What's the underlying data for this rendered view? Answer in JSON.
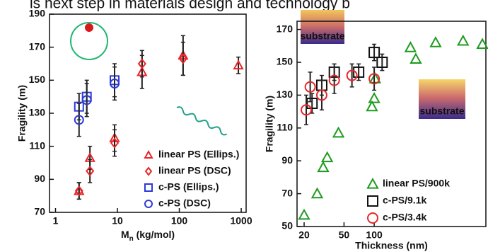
{
  "header": {
    "text": "is next step in materials design and technology b"
  },
  "chart_data": [
    {
      "type": "scatter",
      "xscale": "log",
      "ylabel": "Fragility (m)",
      "xlabel_parts": [
        "M",
        "n",
        " (kg/mol)"
      ],
      "xlim": [
        0.8,
        1200
      ],
      "xticks": [
        1,
        10,
        100,
        1000
      ],
      "ylim": [
        70,
        190
      ],
      "yticks": [
        70,
        90,
        110,
        130,
        150,
        170,
        190
      ],
      "legend": "lower right",
      "series": [
        {
          "name": "linear PS (Ellips.)",
          "color": "#e8262a",
          "marker": "triangle",
          "x": [
            2.4,
            3.6,
            9,
            25,
            115,
            900
          ],
          "values": [
            83,
            103,
            115,
            155,
            165,
            159
          ],
          "errors": [
            5,
            7,
            8,
            10,
            12,
            5
          ]
        },
        {
          "name": "linear PS (DSC)",
          "color": "#e8262a",
          "marker": "diamond",
          "x": [
            2.4,
            3.6,
            9,
            25,
            115
          ],
          "values": [
            83,
            95,
            112,
            160,
            163
          ],
          "errors": [
            5,
            7,
            8,
            8,
            10
          ]
        },
        {
          "name": "c-PS (Ellips.)",
          "color": "#2b3bd6",
          "marker": "square",
          "x": [
            2.4,
            3.2,
            9
          ],
          "values": [
            134,
            140,
            150
          ],
          "errors": [
            8,
            10,
            10
          ]
        },
        {
          "name": "c-PS (DSC)",
          "color": "#2b3bd6",
          "marker": "circle",
          "x": [
            2.4,
            3.2,
            9
          ],
          "values": [
            126,
            138,
            148
          ],
          "errors": [
            10,
            10,
            10
          ]
        }
      ]
    },
    {
      "type": "scatter",
      "xscale": "log",
      "ylabel": "Fragility (m)",
      "xlabel": "Thickness (nm)",
      "xlim": [
        17,
        1300
      ],
      "xticks": [
        20,
        50,
        100
      ],
      "ylim": [
        50,
        175
      ],
      "yticks": [
        50,
        70,
        90,
        110,
        130,
        150,
        170
      ],
      "legend": "lower right",
      "annotations": [
        "substrate",
        "substrate"
      ],
      "series": [
        {
          "name": "linear PS/900k",
          "color": "#1e9a1e",
          "marker": "triangle",
          "x": [
            20,
            27,
            31,
            34,
            44,
            95,
            100,
            102,
            230,
            260,
            410,
            770,
            1200
          ],
          "values": [
            57,
            70,
            86,
            92,
            107,
            123,
            128,
            140,
            159,
            152,
            162,
            163,
            161
          ]
        },
        {
          "name": "c-PS/9.1k",
          "color": "#111111",
          "marker": "square",
          "x": [
            24,
            30,
            40,
            70,
            100,
            120
          ],
          "values": [
            125,
            136,
            144,
            144,
            156,
            150
          ],
          "errors": [
            6,
            6,
            5,
            5,
            5,
            5
          ]
        },
        {
          "name": "c-PS/3.4k",
          "color": "#e8262a",
          "marker": "circle",
          "x": [
            21,
            23,
            30,
            40,
            60,
            100
          ],
          "values": [
            121,
            135,
            130,
            139,
            142,
            140
          ],
          "errors": [
            9,
            9,
            9,
            8,
            7,
            7
          ]
        }
      ]
    }
  ]
}
